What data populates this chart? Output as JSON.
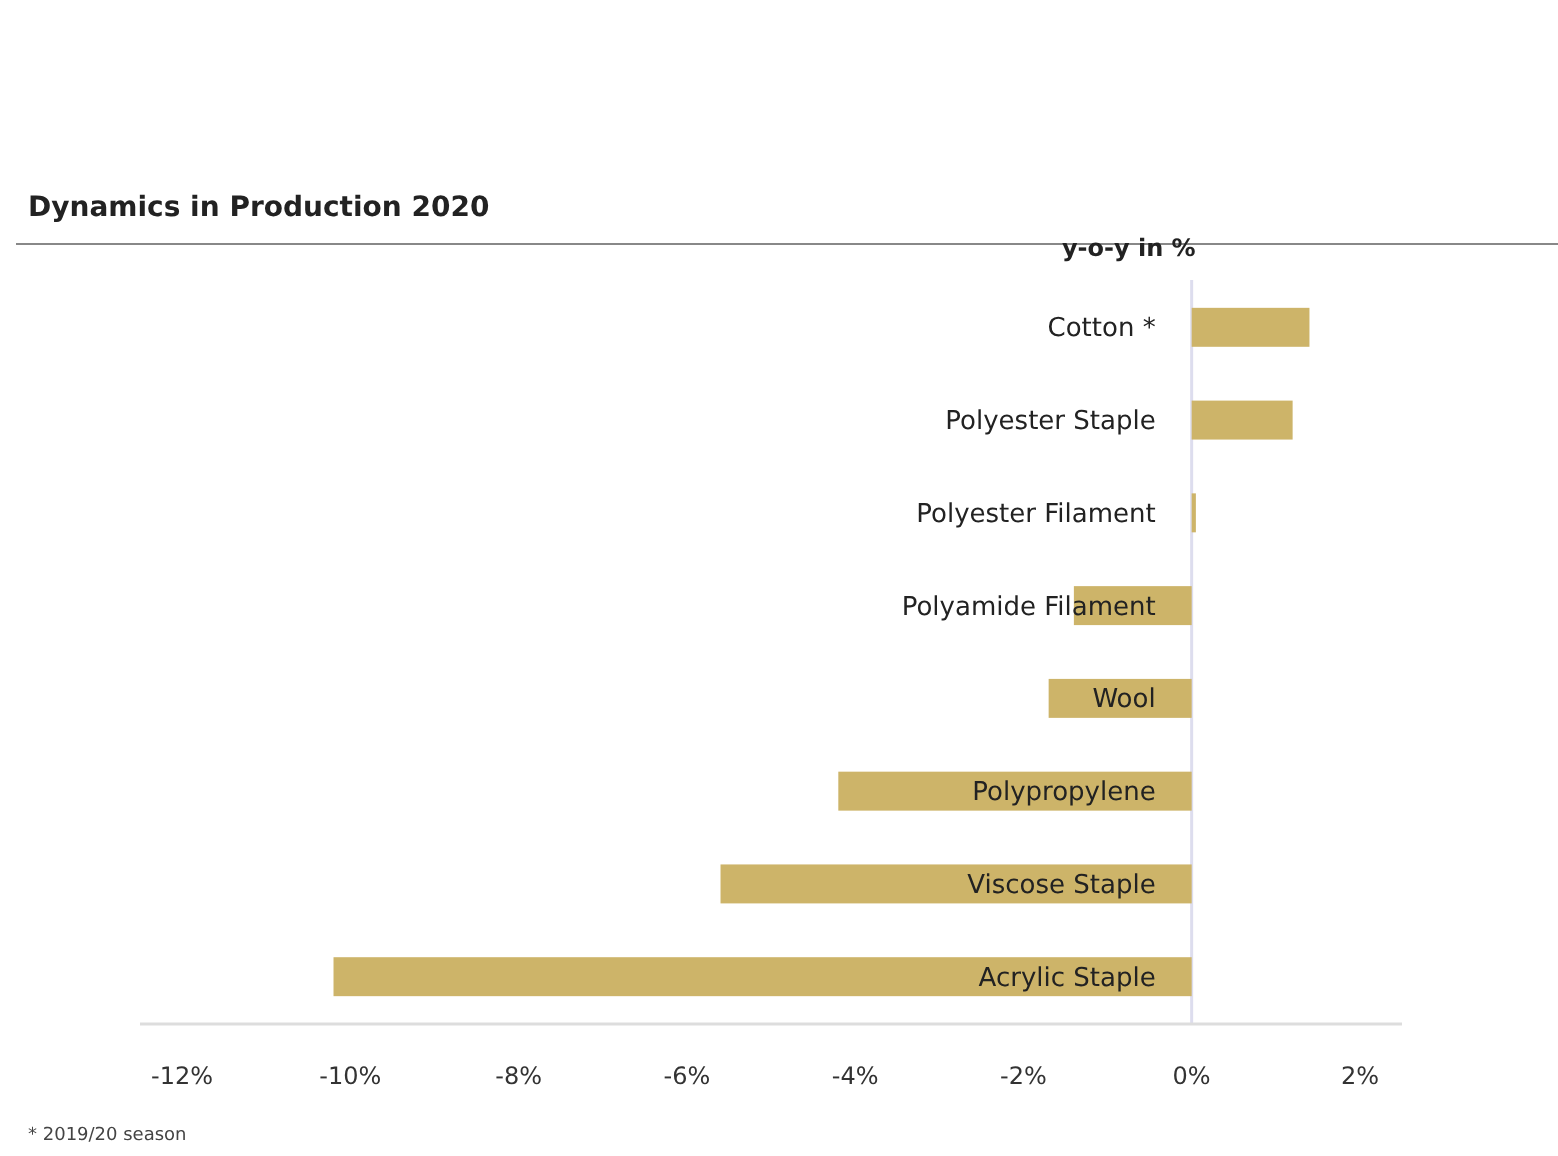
{
  "chart_data": {
    "type": "bar",
    "orientation": "horizontal",
    "title": "Dynamics in Production 2020",
    "xlabel": "y-o-y in %",
    "categories": [
      "Cotton *",
      "Polyester Staple",
      "Polyester Filament",
      "Polyamide Filament",
      "Wool",
      "Polypropylene",
      "Viscose Staple",
      "Acrylic Staple"
    ],
    "values": [
      1.4,
      1.2,
      0.05,
      -1.4,
      -1.7,
      -4.2,
      -5.6,
      -10.2
    ],
    "color": "#cdb469",
    "xlim": [
      -12.5,
      2.5
    ],
    "xticks": [
      {
        "value": -12,
        "label": "-12%"
      },
      {
        "value": -10,
        "label": "-10%"
      },
      {
        "value": -8,
        "label": "-8%"
      },
      {
        "value": -6,
        "label": "-6%"
      },
      {
        "value": -4,
        "label": "-4%"
      },
      {
        "value": -2,
        "label": "-2%"
      },
      {
        "value": 0,
        "label": "0%"
      },
      {
        "value": 2,
        "label": "2%"
      }
    ],
    "grid": false,
    "annotations": [
      "* 2019/20 season"
    ]
  }
}
